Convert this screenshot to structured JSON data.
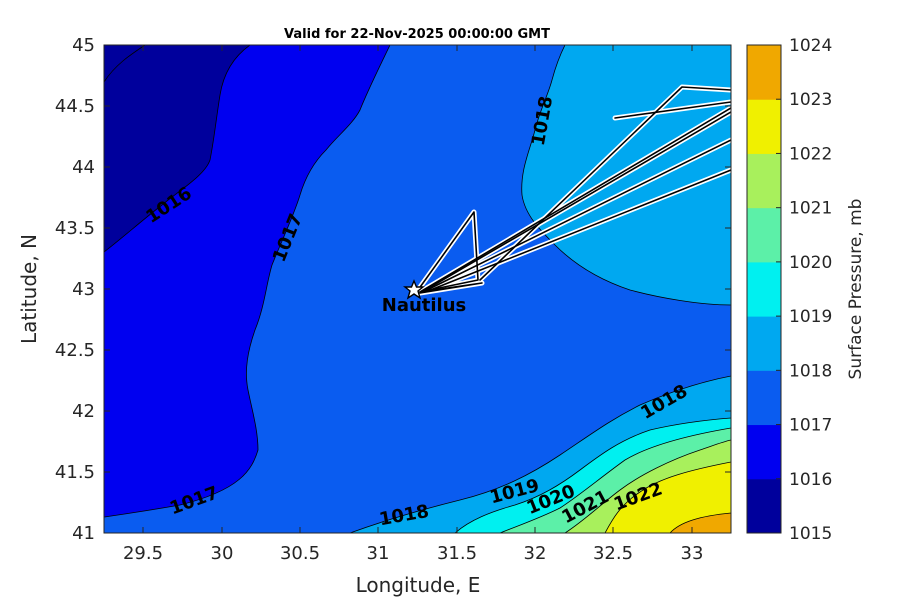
{
  "title": "Valid for 22-Nov-2025 00:00:00 GMT",
  "x_axis": {
    "label": "Longitude, E",
    "ticks": [
      "29.5",
      "30",
      "30.5",
      "31",
      "31.5",
      "32",
      "32.5",
      "33"
    ]
  },
  "y_axis": {
    "label": "Latitude, N",
    "ticks": [
      "41",
      "41.5",
      "42",
      "42.5",
      "43",
      "43.5",
      "44",
      "44.5",
      "45"
    ]
  },
  "colorbar": {
    "label": "Surface Pressure, mb",
    "ticks": [
      "1015",
      "1016",
      "1017",
      "1018",
      "1019",
      "1020",
      "1021",
      "1022",
      "1023",
      "1024"
    ],
    "colors": [
      "#00009c",
      "#0000f0",
      "#0a5cf0",
      "#00a8f0",
      "#00f0f0",
      "#5cf0a8",
      "#a8f05c",
      "#f0f000",
      "#f0a800",
      "#f05c00"
    ]
  },
  "station": {
    "name": "Nautilus",
    "lon": 31.25,
    "lat": 42.98
  },
  "contour_labels": {
    "c1016": "1016",
    "c1017_top": "1017",
    "c1017_bottom": "1017",
    "c1018_top": "1018",
    "c1018_right": "1018",
    "c1018_bottom": "1018",
    "c1019": "1019",
    "c1020": "1020",
    "c1021": "1021",
    "c1022": "1022"
  },
  "chart_data": {
    "type": "heatmap",
    "title": "Valid for 22-Nov-2025 00:00:00 GMT",
    "xlabel": "Longitude, E",
    "ylabel": "Latitude, N",
    "xlim": [
      29.25,
      33.25
    ],
    "ylim": [
      41,
      45
    ],
    "colorbar_label": "Surface Pressure, mb",
    "colorbar_range": [
      1015,
      1024
    ],
    "contour_levels": [
      1016,
      1017,
      1018,
      1019,
      1020,
      1021,
      1022,
      1023
    ],
    "station": {
      "name": "Nautilus",
      "lon": 31.25,
      "lat": 42.98
    }
  }
}
